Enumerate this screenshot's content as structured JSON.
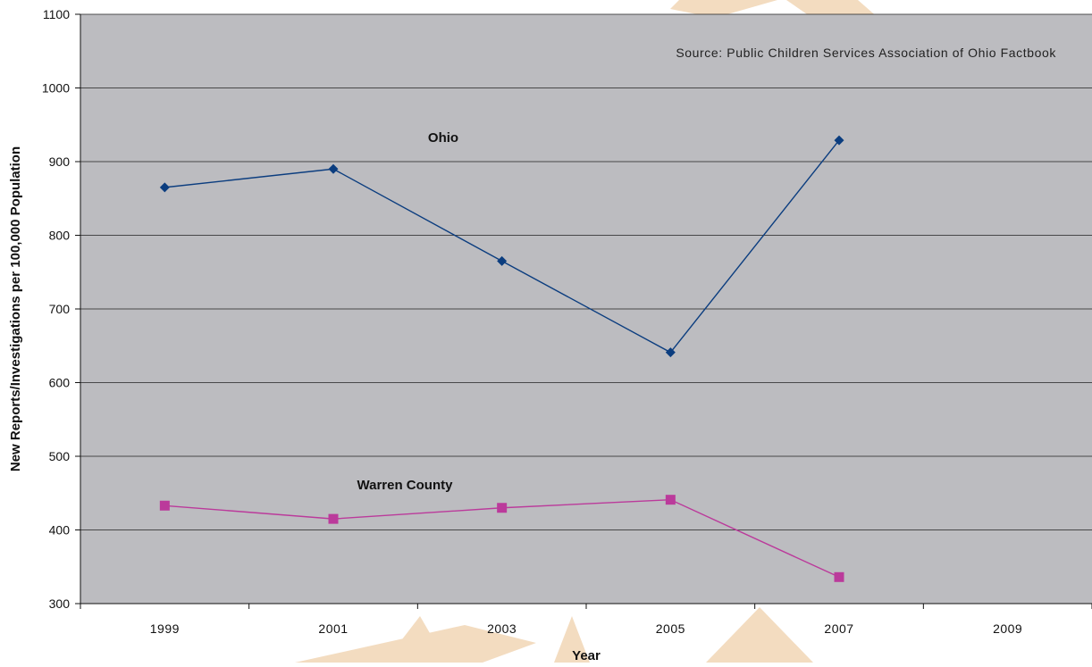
{
  "colors": {
    "plot_bg": "#bcbcc0",
    "ohio": "#0b3d7f",
    "warren": "#bb3a9b",
    "grid": "#222222",
    "watermark": "#f3dcc0"
  },
  "chart_data": {
    "type": "line",
    "categories": [
      "1999",
      "2001",
      "2003",
      "2005",
      "2007",
      "2009"
    ],
    "ylabel": "New Reports/Investigations per 100,000 Population",
    "xlabel": "Year",
    "ylim": [
      300,
      1100
    ],
    "yticks": [
      "300",
      "400",
      "500",
      "600",
      "700",
      "800",
      "900",
      "1000",
      "1100"
    ],
    "grid": true,
    "source_note": "Source: Public Children Services Association of Ohio Factbook",
    "series": [
      {
        "name": "Ohio",
        "marker": "diamond",
        "values": [
          865,
          890,
          765,
          641,
          929,
          null
        ]
      },
      {
        "name": "Warren County",
        "marker": "square",
        "values": [
          433,
          415,
          430,
          441,
          336,
          null
        ]
      }
    ]
  }
}
